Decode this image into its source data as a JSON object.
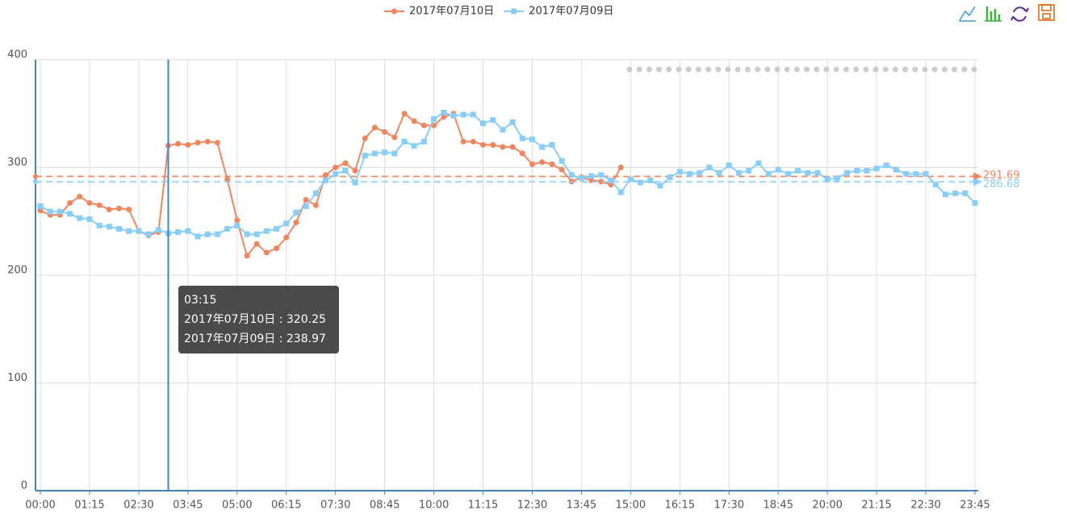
{
  "chart_data": {
    "type": "line",
    "categories": [
      "00:00",
      null,
      null,
      null,
      null,
      "01:15",
      null,
      null,
      null,
      null,
      "02:30",
      null,
      null,
      null,
      null,
      "03:45",
      null,
      null,
      null,
      null,
      "05:00",
      null,
      null,
      null,
      null,
      "06:15",
      null,
      null,
      null,
      null,
      "07:30",
      null,
      null,
      null,
      null,
      "08:45",
      null,
      null,
      null,
      null,
      "10:00",
      null,
      null,
      null,
      null,
      "11:15",
      null,
      null,
      null,
      null,
      "12:30",
      null,
      null,
      null,
      null,
      "13:45",
      null,
      null,
      null,
      null,
      "15:00",
      null,
      null,
      null,
      null,
      "16:15",
      null,
      null,
      null,
      null,
      "17:30",
      null,
      null,
      null,
      null,
      "18:45",
      null,
      null,
      null,
      null,
      "20:00",
      null,
      null,
      null,
      null,
      "21:15",
      null,
      null,
      null,
      null,
      "22:30",
      null,
      null,
      null,
      null,
      "23:45"
    ],
    "series": [
      {
        "name": "2017年07月10日",
        "color": "#f4845a",
        "symbol": "circle",
        "average": 291.69,
        "values": [
          260,
          256,
          256,
          267,
          273,
          267,
          265,
          261,
          262,
          261,
          241,
          237,
          240,
          320.25,
          322,
          321,
          323,
          324,
          323,
          289,
          251,
          218,
          229,
          221,
          225,
          235,
          249,
          270,
          265,
          293,
          300,
          304,
          297,
          327,
          337,
          333,
          328,
          350,
          343,
          339,
          339,
          347,
          350,
          324,
          324,
          321,
          321,
          319,
          319,
          313,
          303,
          305,
          303,
          298,
          287,
          291,
          288,
          287,
          284,
          300,
          null,
          null,
          null,
          null,
          null,
          null,
          null,
          null,
          null,
          null,
          null,
          null,
          null,
          null,
          null,
          null,
          null,
          null,
          null,
          null,
          null,
          null,
          null,
          null,
          null,
          null,
          null,
          null,
          null,
          null,
          null,
          null,
          null,
          null,
          null,
          null
        ]
      },
      {
        "name": "2017年07月09日",
        "color": "#87cefa",
        "symbol": "square",
        "average": 286.68,
        "values": [
          264,
          259,
          259,
          257,
          253,
          252,
          246,
          245,
          243,
          241,
          241,
          238,
          242,
          238.97,
          240,
          241,
          236,
          238,
          238,
          243,
          246,
          238,
          238,
          241,
          243,
          248,
          258,
          264,
          276,
          288,
          294,
          297,
          286,
          311,
          313,
          314,
          313,
          324,
          320,
          324,
          345,
          351,
          348,
          349,
          349,
          341,
          344,
          335,
          342,
          327,
          326,
          319,
          321,
          306,
          293,
          290,
          292,
          293,
          288,
          277,
          289,
          286,
          288,
          283,
          291,
          296,
          294,
          295,
          300,
          295,
          302,
          295,
          297,
          304,
          294,
          298,
          294,
          297,
          295,
          295,
          289,
          290,
          295,
          297,
          297,
          299,
          302,
          298,
          294,
          294,
          294,
          284,
          275,
          276,
          276,
          267
        ]
      }
    ],
    "ylim": [
      0,
      400
    ],
    "yticks": [
      0,
      100,
      200,
      300,
      400
    ],
    "grid": true,
    "tooltip": {
      "index": 13,
      "label": "03:15",
      "separator": " : "
    }
  }
}
